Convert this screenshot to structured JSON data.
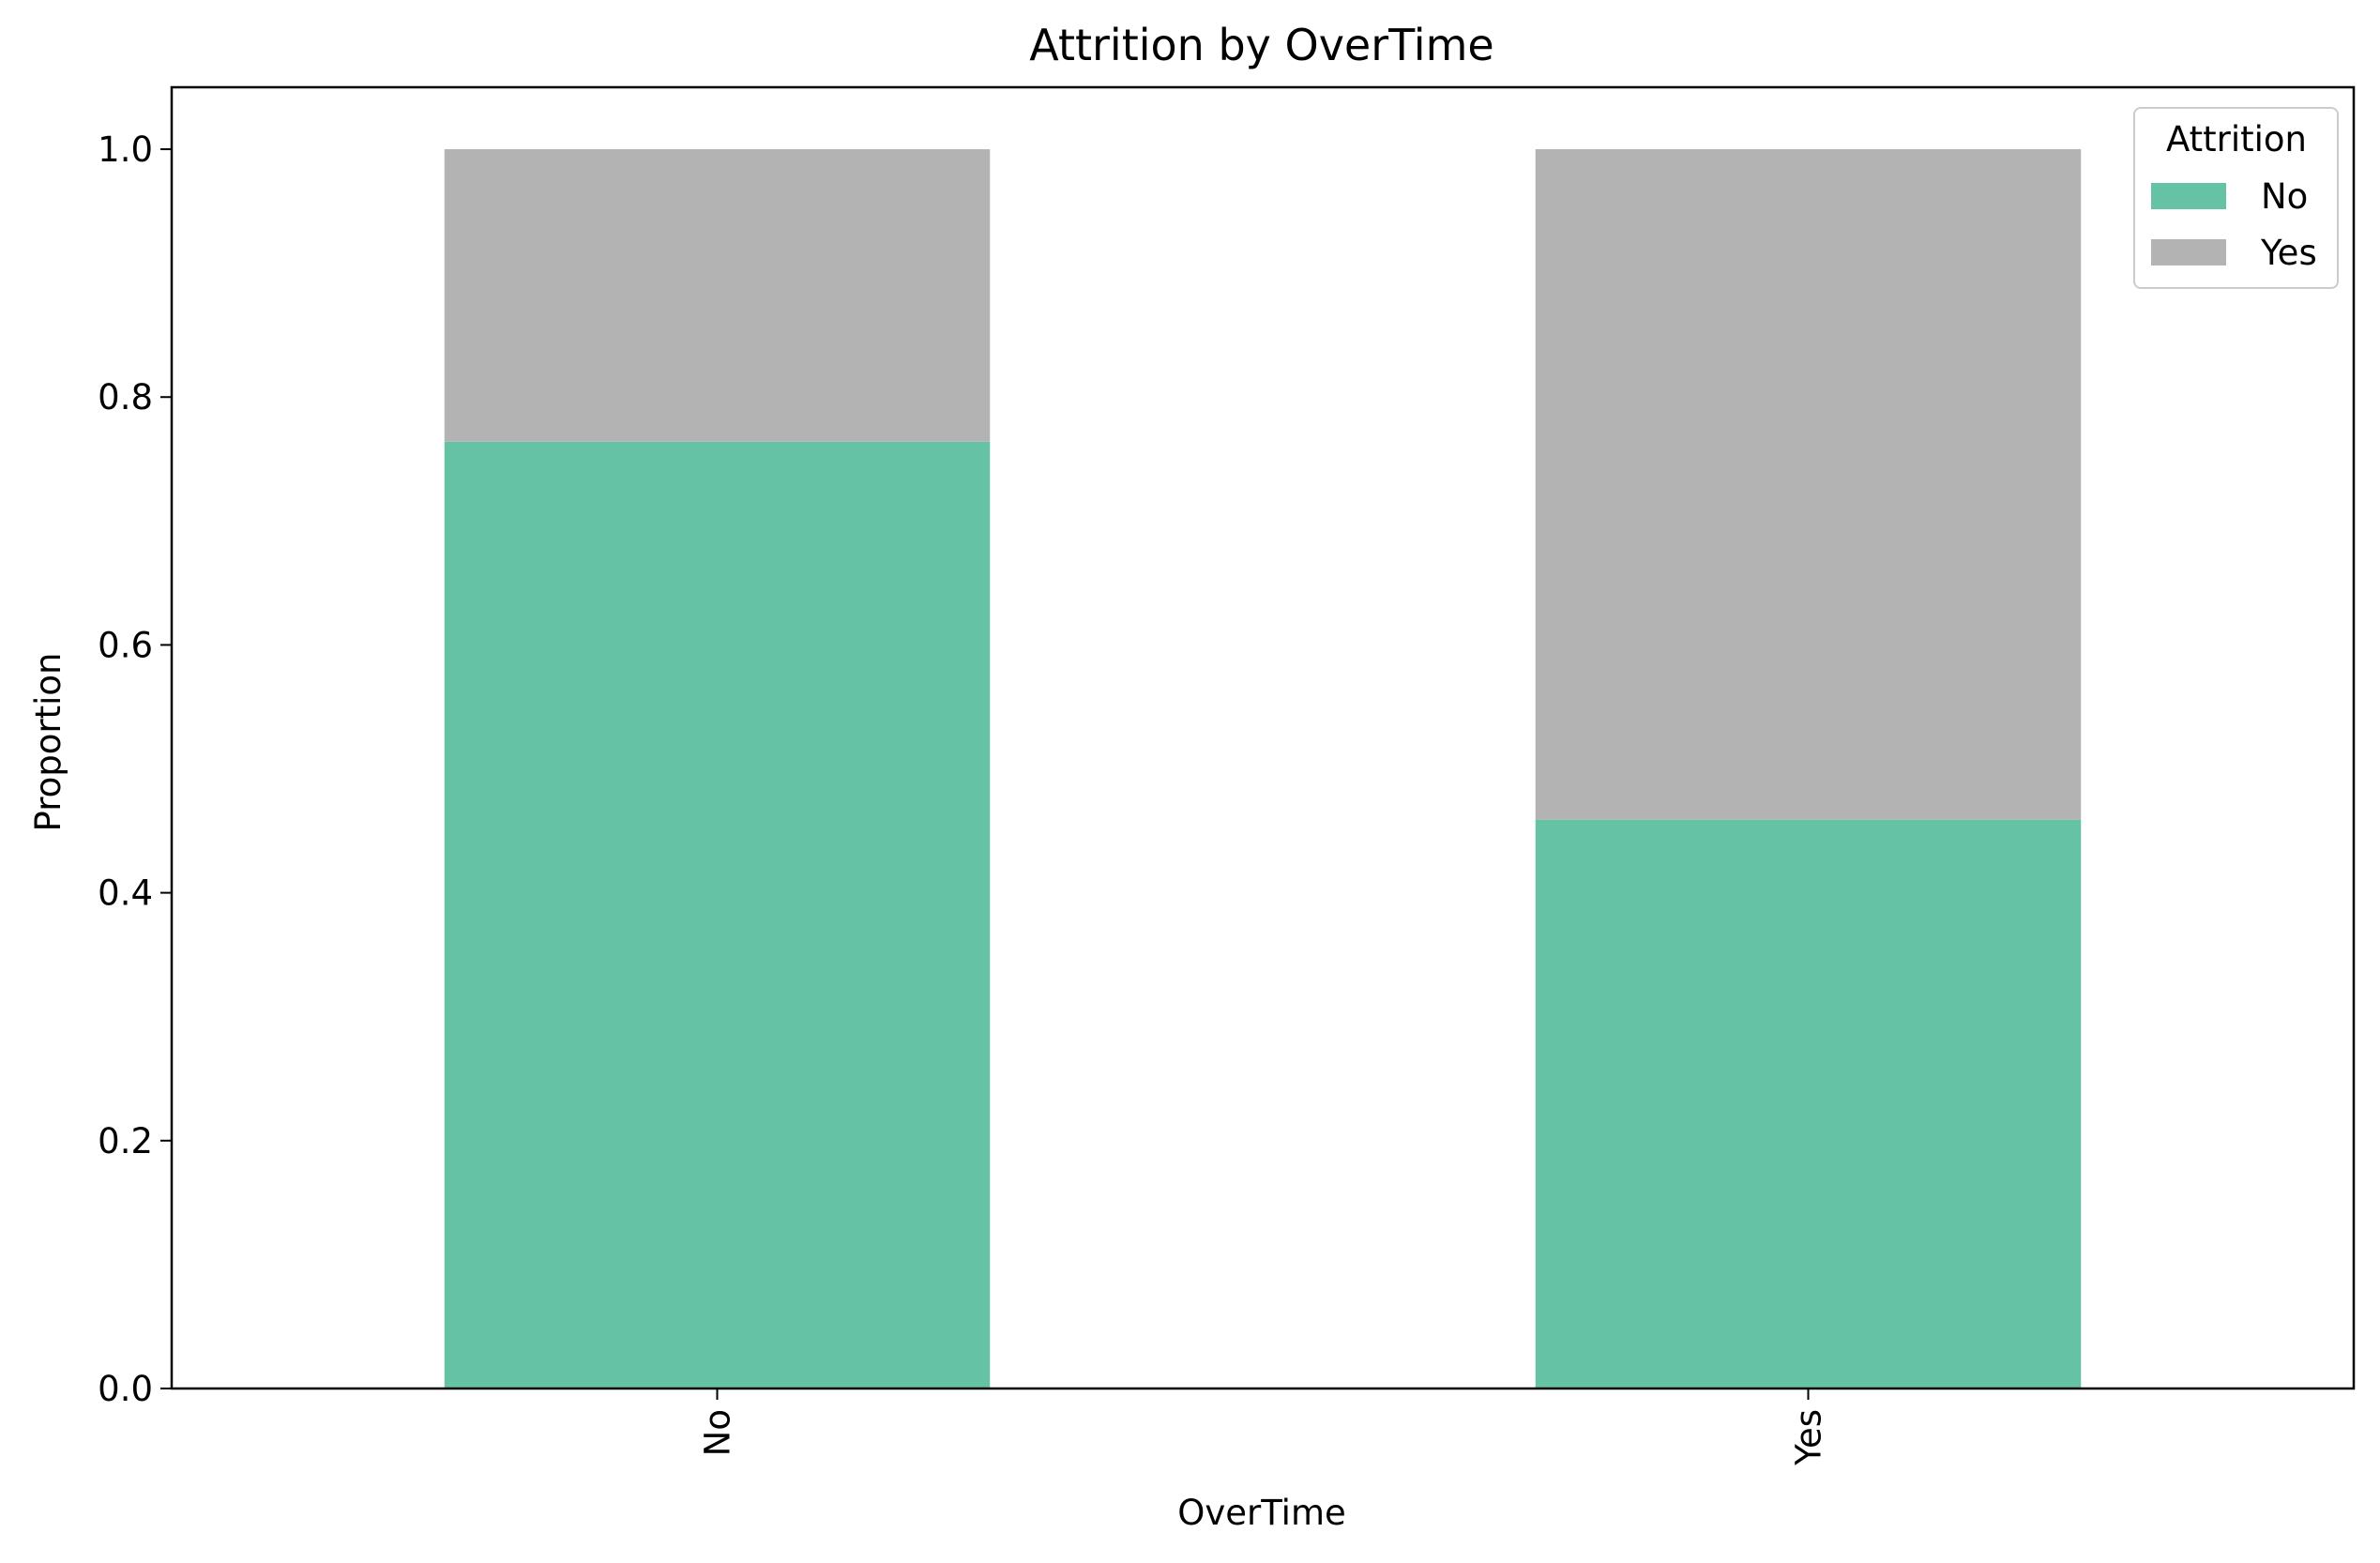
{
  "chart_data": {
    "type": "bar",
    "stacked": true,
    "title": "Attrition by OverTime",
    "xlabel": "OverTime",
    "ylabel": "Proportion",
    "categories": [
      "No",
      "Yes"
    ],
    "series": [
      {
        "name": "No",
        "values": [
          0.764,
          0.459
        ],
        "color": "#66c2a5"
      },
      {
        "name": "Yes",
        "values": [
          0.236,
          0.541
        ],
        "color": "#b3b3b3"
      }
    ],
    "ylim": [
      0,
      1.05
    ],
    "yticks": [
      0.0,
      0.2,
      0.4,
      0.6,
      0.8,
      1.0
    ],
    "ytick_labels": [
      "0.0",
      "0.2",
      "0.4",
      "0.6",
      "0.8",
      "1.0"
    ],
    "xtick_rotation": "vertical",
    "grid": false,
    "legend": {
      "title": "Attrition",
      "placement": "top-right",
      "entries": [
        "No",
        "Yes"
      ]
    }
  }
}
